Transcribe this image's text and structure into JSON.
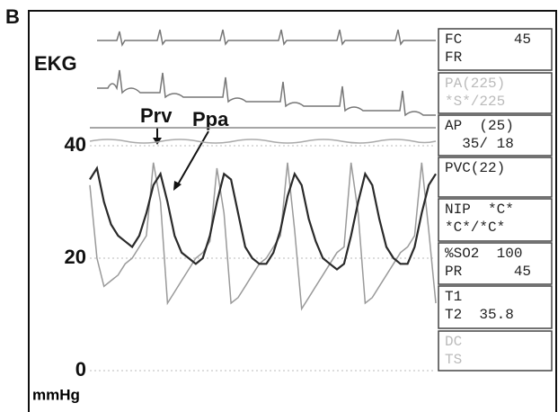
{
  "chart_data": {
    "type": "line",
    "panel_label": "B",
    "ekg_label": "EKG",
    "y_label": "mmHg",
    "ylim": [
      0,
      64
    ],
    "yticks": [
      0,
      20,
      40
    ],
    "grid": true,
    "annotations": [
      {
        "text": "Prv"
      },
      {
        "text": "Ppa"
      }
    ],
    "categories": [
      null,
      null,
      null,
      null,
      null,
      null,
      null,
      null,
      null,
      null,
      null,
      null,
      null,
      null,
      null,
      null,
      null,
      null,
      null,
      null,
      null,
      null,
      null,
      null,
      null,
      null,
      null,
      null,
      null,
      null,
      null,
      null,
      null,
      null,
      null,
      null,
      null,
      null,
      null,
      null,
      null,
      null,
      null,
      null,
      null,
      null,
      null,
      null,
      null,
      null
    ],
    "series": [
      {
        "color": "#2a2a2a",
        "values": [
          34,
          36,
          30,
          26,
          24,
          23,
          22,
          24,
          28,
          33,
          35,
          30,
          24,
          21,
          20,
          19,
          20,
          24,
          30,
          35,
          34,
          28,
          22,
          20,
          19,
          19,
          21,
          25,
          31,
          35,
          33,
          27,
          23,
          20,
          19,
          18,
          19,
          24,
          30,
          35,
          33,
          27,
          22,
          20,
          19,
          19,
          22,
          28,
          33,
          35
        ]
      },
      {
        "color": "#9a9a9a",
        "values": [
          33,
          20,
          15,
          16,
          17,
          19,
          20,
          22,
          24,
          37,
          30,
          12,
          14,
          16,
          18,
          20,
          21,
          23,
          36,
          28,
          12,
          13,
          15,
          17,
          19,
          20,
          22,
          24,
          37,
          25,
          11,
          13,
          15,
          17,
          19,
          21,
          22,
          37,
          28,
          12,
          13,
          15,
          17,
          19,
          21,
          22,
          24,
          37,
          25,
          12
        ]
      }
    ]
  },
  "monitor": [
    {
      "lines": [
        "FC      45",
        "FR"
      ],
      "dim": [
        false,
        false
      ]
    },
    {
      "lines": [
        "PA(225)",
        "*S*/225"
      ],
      "dim": [
        true,
        true
      ]
    },
    {
      "lines": [
        "AP  (25)",
        "  35/ 18"
      ],
      "dim": [
        false,
        false
      ]
    },
    {
      "lines": [
        "PVC(22)"
      ],
      "dim": [
        false
      ]
    },
    {
      "lines": [
        "NIP  *C*",
        "*C*/*C*"
      ],
      "dim": [
        false,
        false
      ]
    },
    {
      "lines": [
        "%SO2  100",
        "PR      45"
      ],
      "dim": [
        false,
        false
      ]
    },
    {
      "lines": [
        "T1",
        "T2  35.8"
      ],
      "dim": [
        false,
        false
      ]
    },
    {
      "lines": [
        "DC",
        "TS"
      ],
      "dim": [
        true,
        true
      ]
    }
  ]
}
